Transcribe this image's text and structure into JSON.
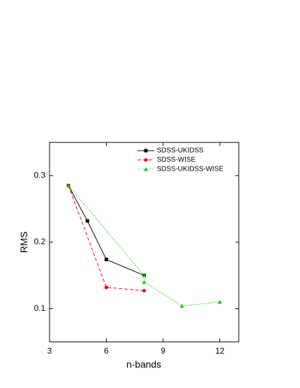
{
  "chart_data": {
    "type": "line",
    "x_label": "n-bands",
    "y_label": "RMS",
    "xlim": [
      3,
      13
    ],
    "xticks": [
      3,
      6,
      9,
      12
    ],
    "ylim": [
      0.05,
      0.35
    ],
    "yticks": [
      0.1,
      0.2,
      0.3
    ],
    "legend": "upper right",
    "series": [
      {
        "name": "SDSS-UKIDSS",
        "color": "#000000",
        "linestyle": "solid",
        "marker": "square",
        "x": [
          4,
          5,
          6,
          8
        ],
        "values": [
          0.285,
          0.232,
          0.174,
          0.15
        ]
      },
      {
        "name": "SDSS-WISE",
        "color": "#ff0000",
        "linestyle": "dashed",
        "marker": "circle",
        "x": [
          4,
          6,
          8
        ],
        "values": [
          0.285,
          0.132,
          0.127
        ]
      },
      {
        "name": "SDSS-UKIDSS-WISE",
        "color": "#00cc00",
        "linestyle": "dotted",
        "marker": "triangle",
        "x": [
          4,
          8,
          8,
          10,
          12
        ],
        "values": [
          0.285,
          0.15,
          0.14,
          0.104,
          0.11
        ]
      }
    ]
  }
}
